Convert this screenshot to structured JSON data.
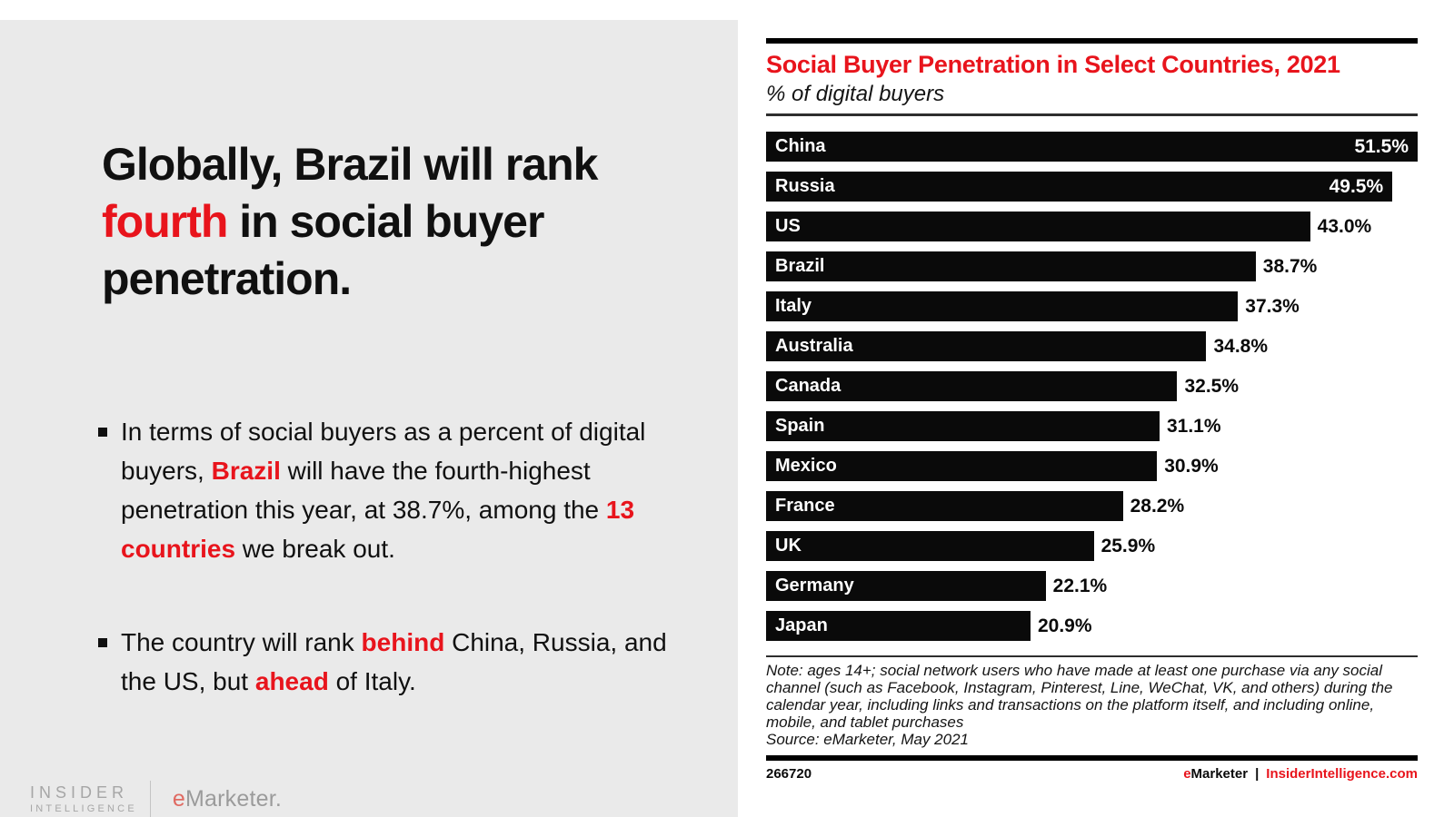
{
  "colors": {
    "accent_red": "#e8141c",
    "panel_bg": "#eaeaea",
    "bar_color": "#0a0a0a",
    "logo_gray": "#a6a6a6",
    "logo_e_red": "#e06a62"
  },
  "left_panel": {
    "headline": {
      "segments": [
        {
          "text": "Globally, Brazil will rank "
        },
        {
          "text": "fourth",
          "highlight": true
        },
        {
          "text": " in social buyer penetration."
        }
      ]
    },
    "bullets": [
      {
        "segments": [
          {
            "text": "In terms of social buyers as a percent of digital buyers, "
          },
          {
            "text": "Brazil",
            "highlight": true
          },
          {
            "text": " will have the fourth-highest penetration this year, at 38.7%, among the "
          },
          {
            "text": "13 countries",
            "highlight": true
          },
          {
            "text": " we break out."
          }
        ]
      },
      {
        "segments": [
          {
            "text": "The country will rank "
          },
          {
            "text": "behind",
            "highlight": true
          },
          {
            "text": " China, Russia, and the US, but "
          },
          {
            "text": "ahead",
            "highlight": true
          },
          {
            "text": " of Italy."
          }
        ]
      }
    ],
    "logo": {
      "insider_line1": "INSIDER",
      "insider_line2": "INTELLIGENCE",
      "emarketer_e": "e",
      "emarketer_rest": "Marketer."
    }
  },
  "chart_data": {
    "type": "bar",
    "orientation": "horizontal",
    "title": "Social Buyer Penetration in Select Countries, 2021",
    "subtitle": "% of digital buyers",
    "categories": [
      "China",
      "Russia",
      "US",
      "Brazil",
      "Italy",
      "Australia",
      "Canada",
      "Spain",
      "Mexico",
      "France",
      "UK",
      "Germany",
      "Japan"
    ],
    "values": [
      51.5,
      49.5,
      43.0,
      38.7,
      37.3,
      34.8,
      32.5,
      31.1,
      30.9,
      28.2,
      25.9,
      22.1,
      20.9
    ],
    "value_labels": [
      "51.5%",
      "49.5%",
      "43.0%",
      "38.7%",
      "37.3%",
      "34.8%",
      "32.5%",
      "31.1%",
      "30.9%",
      "28.2%",
      "25.9%",
      "22.1%",
      "20.9%"
    ],
    "xmax": 51.5,
    "xlabel": "",
    "ylabel": "",
    "grid": false,
    "legend": false,
    "bar_color": "#0a0a0a",
    "note": "Note: ages 14+; social network users who have made at least one purchase via any social channel (such as Facebook, Instagram, Pinterest, Line, WeChat, VK, and others) during the calendar year, including links and transactions on the platform itself, and including online, mobile, and tablet purchases",
    "source": "Source: eMarketer, May 2021",
    "footer_id": "266720",
    "footer_brand_e": "e",
    "footer_brand_rest": "Marketer",
    "footer_separator": "|",
    "footer_site": "InsiderIntelligence.com"
  }
}
